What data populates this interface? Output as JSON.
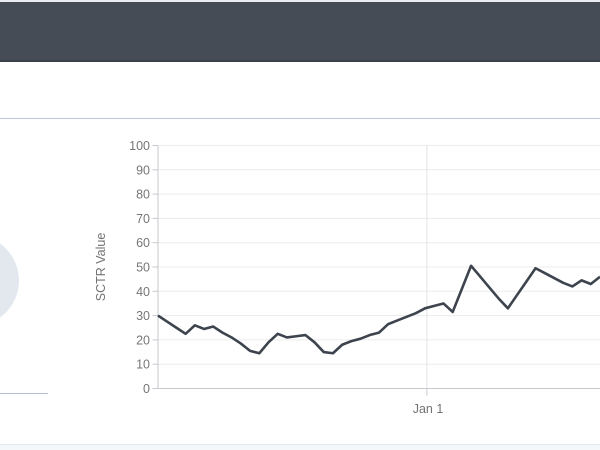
{
  "colors": {
    "header_bar": "#454c56",
    "header_border": "#3b424b",
    "line": "#3d444e",
    "grid": "#ececec",
    "grid_vertical": "#e4e4e4",
    "axis": "#c6c9cd",
    "tick_text": "#767676",
    "gauge_fill": "#e2e8ee",
    "divider": "#b9c7d8"
  },
  "chart_data": {
    "type": "line",
    "title": "",
    "xlabel": "",
    "ylabel": "SCTR Value",
    "ylim": [
      0,
      100
    ],
    "grid": true,
    "legend": "none",
    "y_ticks": [
      0,
      10,
      20,
      30,
      40,
      50,
      60,
      70,
      80,
      90,
      100
    ],
    "x_ticks": [
      {
        "label": "Jan 1",
        "index": 29.2
      }
    ],
    "values": [
      30,
      27.5,
      25,
      22.5,
      26,
      24.5,
      25.5,
      23,
      21,
      18.5,
      15.5,
      14.5,
      19,
      22.5,
      21,
      21.5,
      22,
      19,
      15,
      14.5,
      18,
      19.5,
      20.5,
      22,
      23,
      26.5,
      28,
      29.5,
      31,
      33,
      34,
      35,
      31.5,
      41,
      50.5,
      46,
      41.5,
      37,
      33,
      38.5,
      44,
      49.5,
      47.5,
      45.5,
      43.5,
      42,
      44.5,
      43,
      46
    ]
  }
}
